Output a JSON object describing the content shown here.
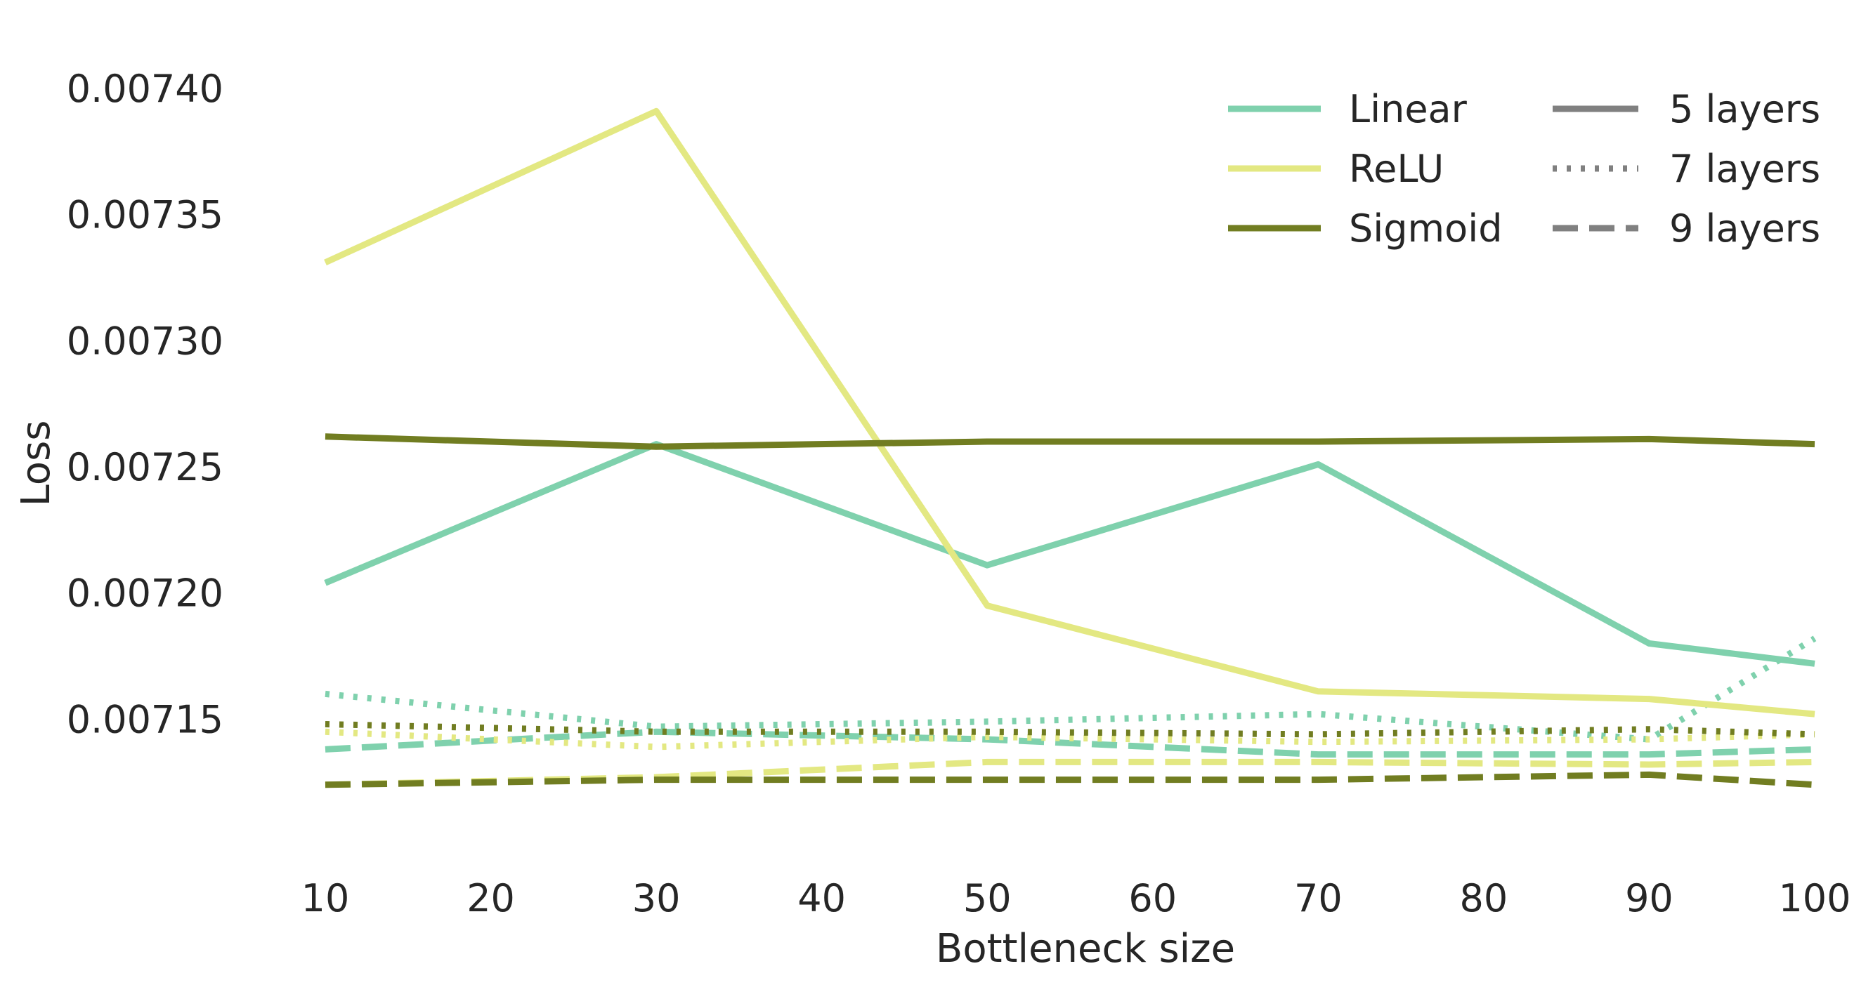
{
  "chart_data": {
    "type": "line",
    "xlabel": "Bottleneck size",
    "ylabel": "Loss",
    "x": [
      10,
      30,
      50,
      70,
      90,
      100
    ],
    "xticks": [
      10,
      20,
      30,
      40,
      50,
      60,
      70,
      80,
      90,
      100
    ],
    "xlim": [
      10,
      100
    ],
    "yticks": [
      "0.00715",
      "0.00720",
      "0.00725",
      "0.00730",
      "0.00735",
      "0.00740"
    ],
    "ylim": [
      0.0071,
      0.00741
    ],
    "grid": false,
    "legend_placement": "top-right",
    "legend": {
      "activations": [
        {
          "label": "Linear",
          "color": "#7fd1ad"
        },
        {
          "label": "ReLU",
          "color": "#e3e882"
        },
        {
          "label": "Sigmoid",
          "color": "#717d21"
        }
      ],
      "layers": [
        {
          "label": "5 layers",
          "style": "solid"
        },
        {
          "label": "7 layers",
          "style": "dotted"
        },
        {
          "label": "9 layers",
          "style": "dashed"
        }
      ],
      "style_color": "#808080"
    },
    "series": [
      {
        "activation": "Linear",
        "layers": "5 layers",
        "color": "#7fd1ad",
        "style": "solid",
        "values": [
          0.007204,
          0.007259,
          0.007211,
          0.007251,
          0.00718,
          0.007172
        ]
      },
      {
        "activation": "ReLU",
        "layers": "5 layers",
        "color": "#e3e882",
        "style": "solid",
        "values": [
          0.007331,
          0.007391,
          0.007195,
          0.007161,
          0.007158,
          0.007152
        ]
      },
      {
        "activation": "Sigmoid",
        "layers": "5 layers",
        "color": "#717d21",
        "style": "solid",
        "values": [
          0.007262,
          0.007258,
          0.00726,
          0.00726,
          0.007261,
          0.007259
        ]
      },
      {
        "activation": "Linear",
        "layers": "7 layers",
        "color": "#7fd1ad",
        "style": "dotted",
        "values": [
          0.00716,
          0.007147,
          0.007149,
          0.007152,
          0.007142,
          0.007182
        ]
      },
      {
        "activation": "ReLU",
        "layers": "7 layers",
        "color": "#e3e882",
        "style": "dotted",
        "values": [
          0.007145,
          0.007139,
          0.007143,
          0.007141,
          0.007142,
          0.007144
        ]
      },
      {
        "activation": "Sigmoid",
        "layers": "7 layers",
        "color": "#717d21",
        "style": "dotted",
        "values": [
          0.007148,
          0.007145,
          0.007145,
          0.007144,
          0.007146,
          0.007144
        ]
      },
      {
        "activation": "Linear",
        "layers": "9 layers",
        "color": "#7fd1ad",
        "style": "dashed",
        "values": [
          0.007138,
          0.007145,
          0.007142,
          0.007136,
          0.007136,
          0.007138
        ]
      },
      {
        "activation": "ReLU",
        "layers": "9 layers",
        "color": "#e3e882",
        "style": "dashed",
        "values": [
          0.007124,
          0.007127,
          0.007133,
          0.007133,
          0.007132,
          0.007133
        ]
      },
      {
        "activation": "Sigmoid",
        "layers": "9 layers",
        "color": "#717d21",
        "style": "dashed",
        "values": [
          0.007124,
          0.007126,
          0.007126,
          0.007126,
          0.007128,
          0.007124
        ]
      }
    ]
  }
}
